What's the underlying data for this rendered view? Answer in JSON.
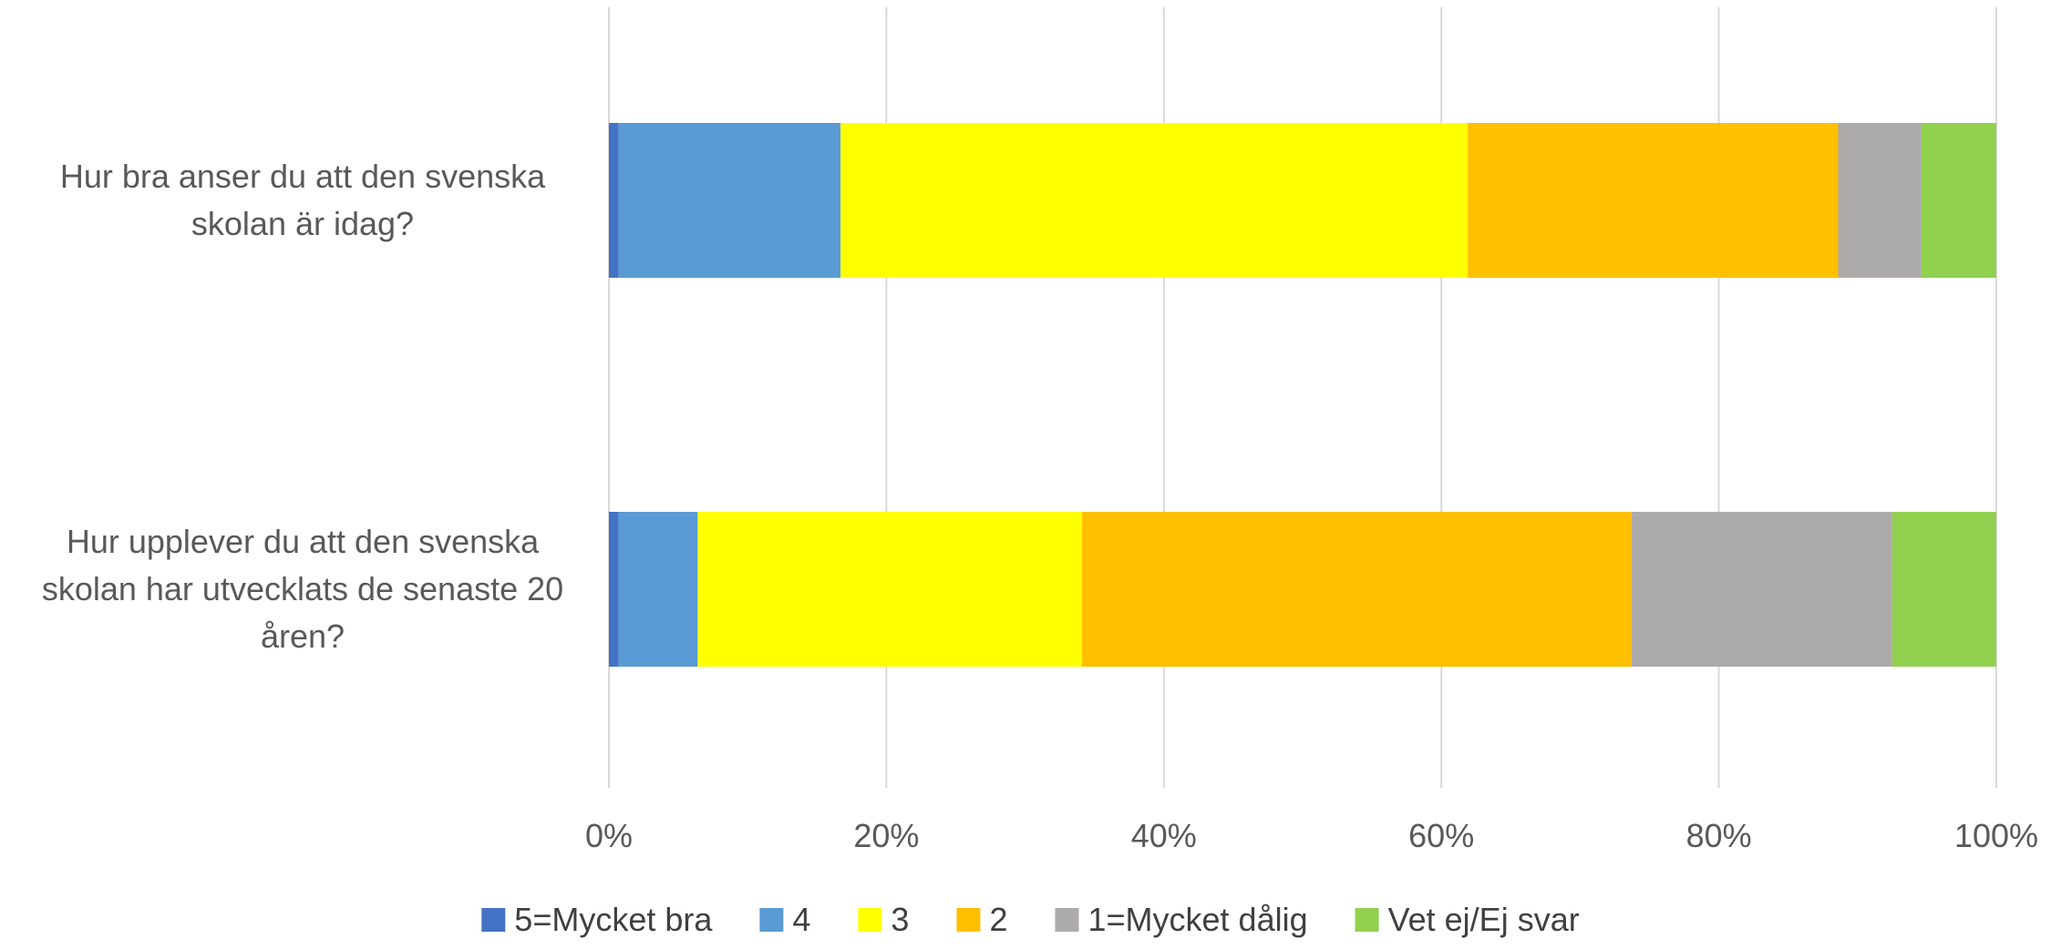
{
  "chart_data": {
    "type": "bar",
    "orientation": "horizontal",
    "stacked": "percent",
    "categories": [
      [
        "Hur bra anser du att den svenska",
        "skolan är idag?"
      ],
      [
        "Hur upplever du att den svenska",
        "skolan har utvecklats de senaste 20",
        "åren?"
      ]
    ],
    "series": [
      {
        "name": "5=Mycket bra",
        "color": "#4472C4",
        "values": [
          0.7,
          0.7
        ]
      },
      {
        "name": "4",
        "color": "#5B9BD5",
        "values": [
          16.0,
          5.7
        ]
      },
      {
        "name": "3",
        "color": "#FFFF00",
        "values": [
          45.2,
          27.7
        ]
      },
      {
        "name": "2",
        "color": "#FFC000",
        "values": [
          26.7,
          39.6
        ]
      },
      {
        "name": "1=Mycket dålig",
        "color": "#ADAAAA",
        "values": [
          6.0,
          18.8
        ]
      },
      {
        "name": "Vet ej/Ej svar",
        "color": "#92D050",
        "values": [
          5.4,
          7.5
        ]
      }
    ],
    "xlim": [
      0,
      100
    ],
    "x_ticks": [
      "0%",
      "20%",
      "40%",
      "60%",
      "80%",
      "100%"
    ],
    "grid": true,
    "legend_position": "bottom"
  }
}
